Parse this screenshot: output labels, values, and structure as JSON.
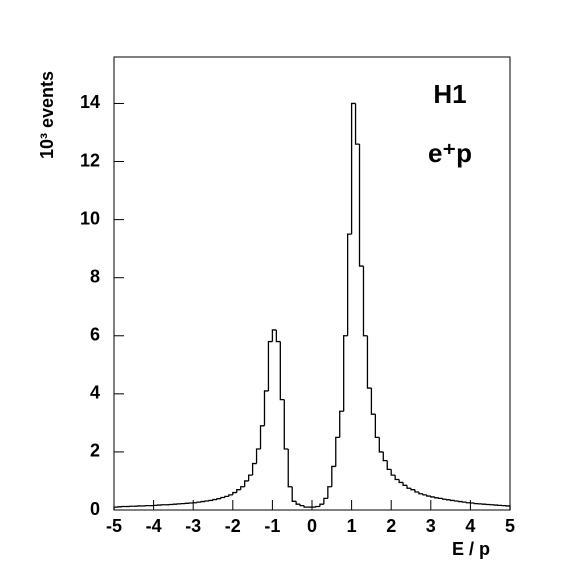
{
  "chart_data": {
    "type": "histogram",
    "x_label": "E / p",
    "y_label": "10³ events",
    "annotations": [
      "H1",
      "e⁺p"
    ],
    "bins": [
      -5,
      -4.9,
      -4.8,
      -4.7,
      -4.6,
      -4.5,
      -4.4,
      -4.3,
      -4.2,
      -4.1,
      -4,
      -3.9,
      -3.8,
      -3.7,
      -3.6,
      -3.5,
      -3.4,
      -3.3,
      -3.2,
      -3.1,
      -3,
      -2.9,
      -2.8,
      -2.7,
      -2.6,
      -2.5,
      -2.4,
      -2.3,
      -2.2,
      -2.1,
      -2,
      -1.9,
      -1.8,
      -1.7,
      -1.6,
      -1.5,
      -1.4,
      -1.3,
      -1.2,
      -1.1,
      -1,
      -0.9,
      -0.8,
      -0.7,
      -0.6,
      -0.5,
      -0.4,
      -0.3,
      -0.2,
      -0.1,
      0,
      0.1,
      0.2,
      0.3,
      0.4,
      0.5,
      0.6,
      0.7,
      0.8,
      0.9,
      1,
      1.1,
      1.2,
      1.3,
      1.4,
      1.5,
      1.6,
      1.7,
      1.8,
      1.9,
      2,
      2.1,
      2.2,
      2.3,
      2.4,
      2.5,
      2.6,
      2.7,
      2.8,
      2.9,
      3,
      3.1,
      3.2,
      3.3,
      3.4,
      3.5,
      3.6,
      3.7,
      3.8,
      3.9,
      4,
      4.1,
      4.2,
      4.3,
      4.4,
      4.5,
      4.6,
      4.7,
      4.8,
      4.9,
      5
    ],
    "values": [
      0.1,
      0.11,
      0.12,
      0.12,
      0.13,
      0.13,
      0.14,
      0.14,
      0.15,
      0.15,
      0.16,
      0.17,
      0.18,
      0.18,
      0.19,
      0.2,
      0.21,
      0.22,
      0.23,
      0.24,
      0.25,
      0.27,
      0.29,
      0.31,
      0.33,
      0.36,
      0.39,
      0.43,
      0.47,
      0.52,
      0.6,
      0.7,
      0.8,
      1.0,
      1.2,
      1.6,
      2.1,
      2.9,
      4.1,
      5.8,
      6.2,
      5.8,
      3.8,
      2.1,
      0.8,
      0.3,
      0.2,
      0.15,
      0.1,
      0.1,
      0.1,
      0.12,
      0.2,
      0.4,
      0.8,
      1.5,
      2.5,
      3.4,
      6.0,
      9.5,
      14.0,
      12.6,
      8.4,
      6.0,
      4.2,
      3.3,
      2.5,
      2.0,
      1.7,
      1.4,
      1.2,
      1.05,
      0.95,
      0.85,
      0.75,
      0.7,
      0.62,
      0.56,
      0.52,
      0.48,
      0.45,
      0.42,
      0.4,
      0.37,
      0.35,
      0.33,
      0.31,
      0.29,
      0.27,
      0.25,
      0.24,
      0.22,
      0.21,
      0.2,
      0.19,
      0.18,
      0.17,
      0.16,
      0.15,
      0.14
    ],
    "color": "#000000",
    "xlim": [
      -5,
      5
    ],
    "xticks": [
      -5,
      -4,
      -3,
      -2,
      -1,
      0,
      1,
      2,
      3,
      4,
      5
    ],
    "ylim": [
      0,
      15.6
    ],
    "yticks": [
      0,
      2,
      4,
      6,
      8,
      10,
      12,
      14
    ]
  }
}
